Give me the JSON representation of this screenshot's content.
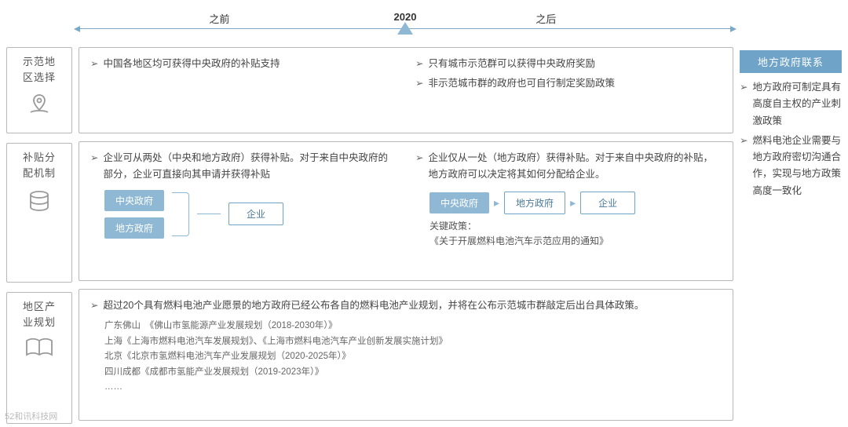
{
  "timeline": {
    "before": "之前",
    "year": "2020",
    "after": "之后"
  },
  "rows": {
    "r1": {
      "label": "示范地\n区选择"
    },
    "r2": {
      "label": "补贴分\n配机制"
    },
    "r3": {
      "label": "地区产\n业规划"
    }
  },
  "p1": {
    "left": [
      "中国各地区均可获得中央政府的补贴支持"
    ],
    "right": [
      "只有城市示范群可以获得中央政府奖励",
      "非示范城市群的政府也可自行制定奖励政策"
    ]
  },
  "p2": {
    "leftText": "企业可从两处（中央和地方政府）获得补贴。对于来自中央政府的部分，企业可直接向其申请并获得补贴",
    "rightText": "企业仅从一处（地方政府）获得补贴。对于来自中央政府的补贴，地方政府可以决定将其如何分配给企业。",
    "nodes": {
      "central": "中央政府",
      "local": "地方政府",
      "company": "企业"
    },
    "keyLabel": "关键政策：",
    "keyDoc": "《关于开展燃料电池汽车示范应用的通知》"
  },
  "p3": {
    "bullet": "超过20个具有燃料电池产业愿景的地方政府已经公布各自的燃料电池产业规划，并将在公布示范城市群敲定后出台具体政策。",
    "plans": [
      "广东佛山　《佛山市氢能源产业发展规划（2018-2030年）》",
      "上海《上海市燃料电池汽车发展规划》、《上海市燃料电池汽车产业创新发展实施计划》",
      "北京《北京市氢燃料电池汽车产业发展规划（2020-2025年）》",
      "四川成都《成都市氢能产业发展规划（2019-2023年）》",
      "……"
    ]
  },
  "side": {
    "title": "地方政府联系",
    "items": [
      "地方政府可制定具有高度自主权的产业刺激政策",
      "燃料电池企业需要与地方政府密切沟通合作，实现与地方政策高度一致化"
    ]
  },
  "colors": {
    "accent": "#8fb8d4",
    "accentDark": "#6fa3c7",
    "border": "#b8b8b8"
  },
  "watermark": "52和讯科技网"
}
